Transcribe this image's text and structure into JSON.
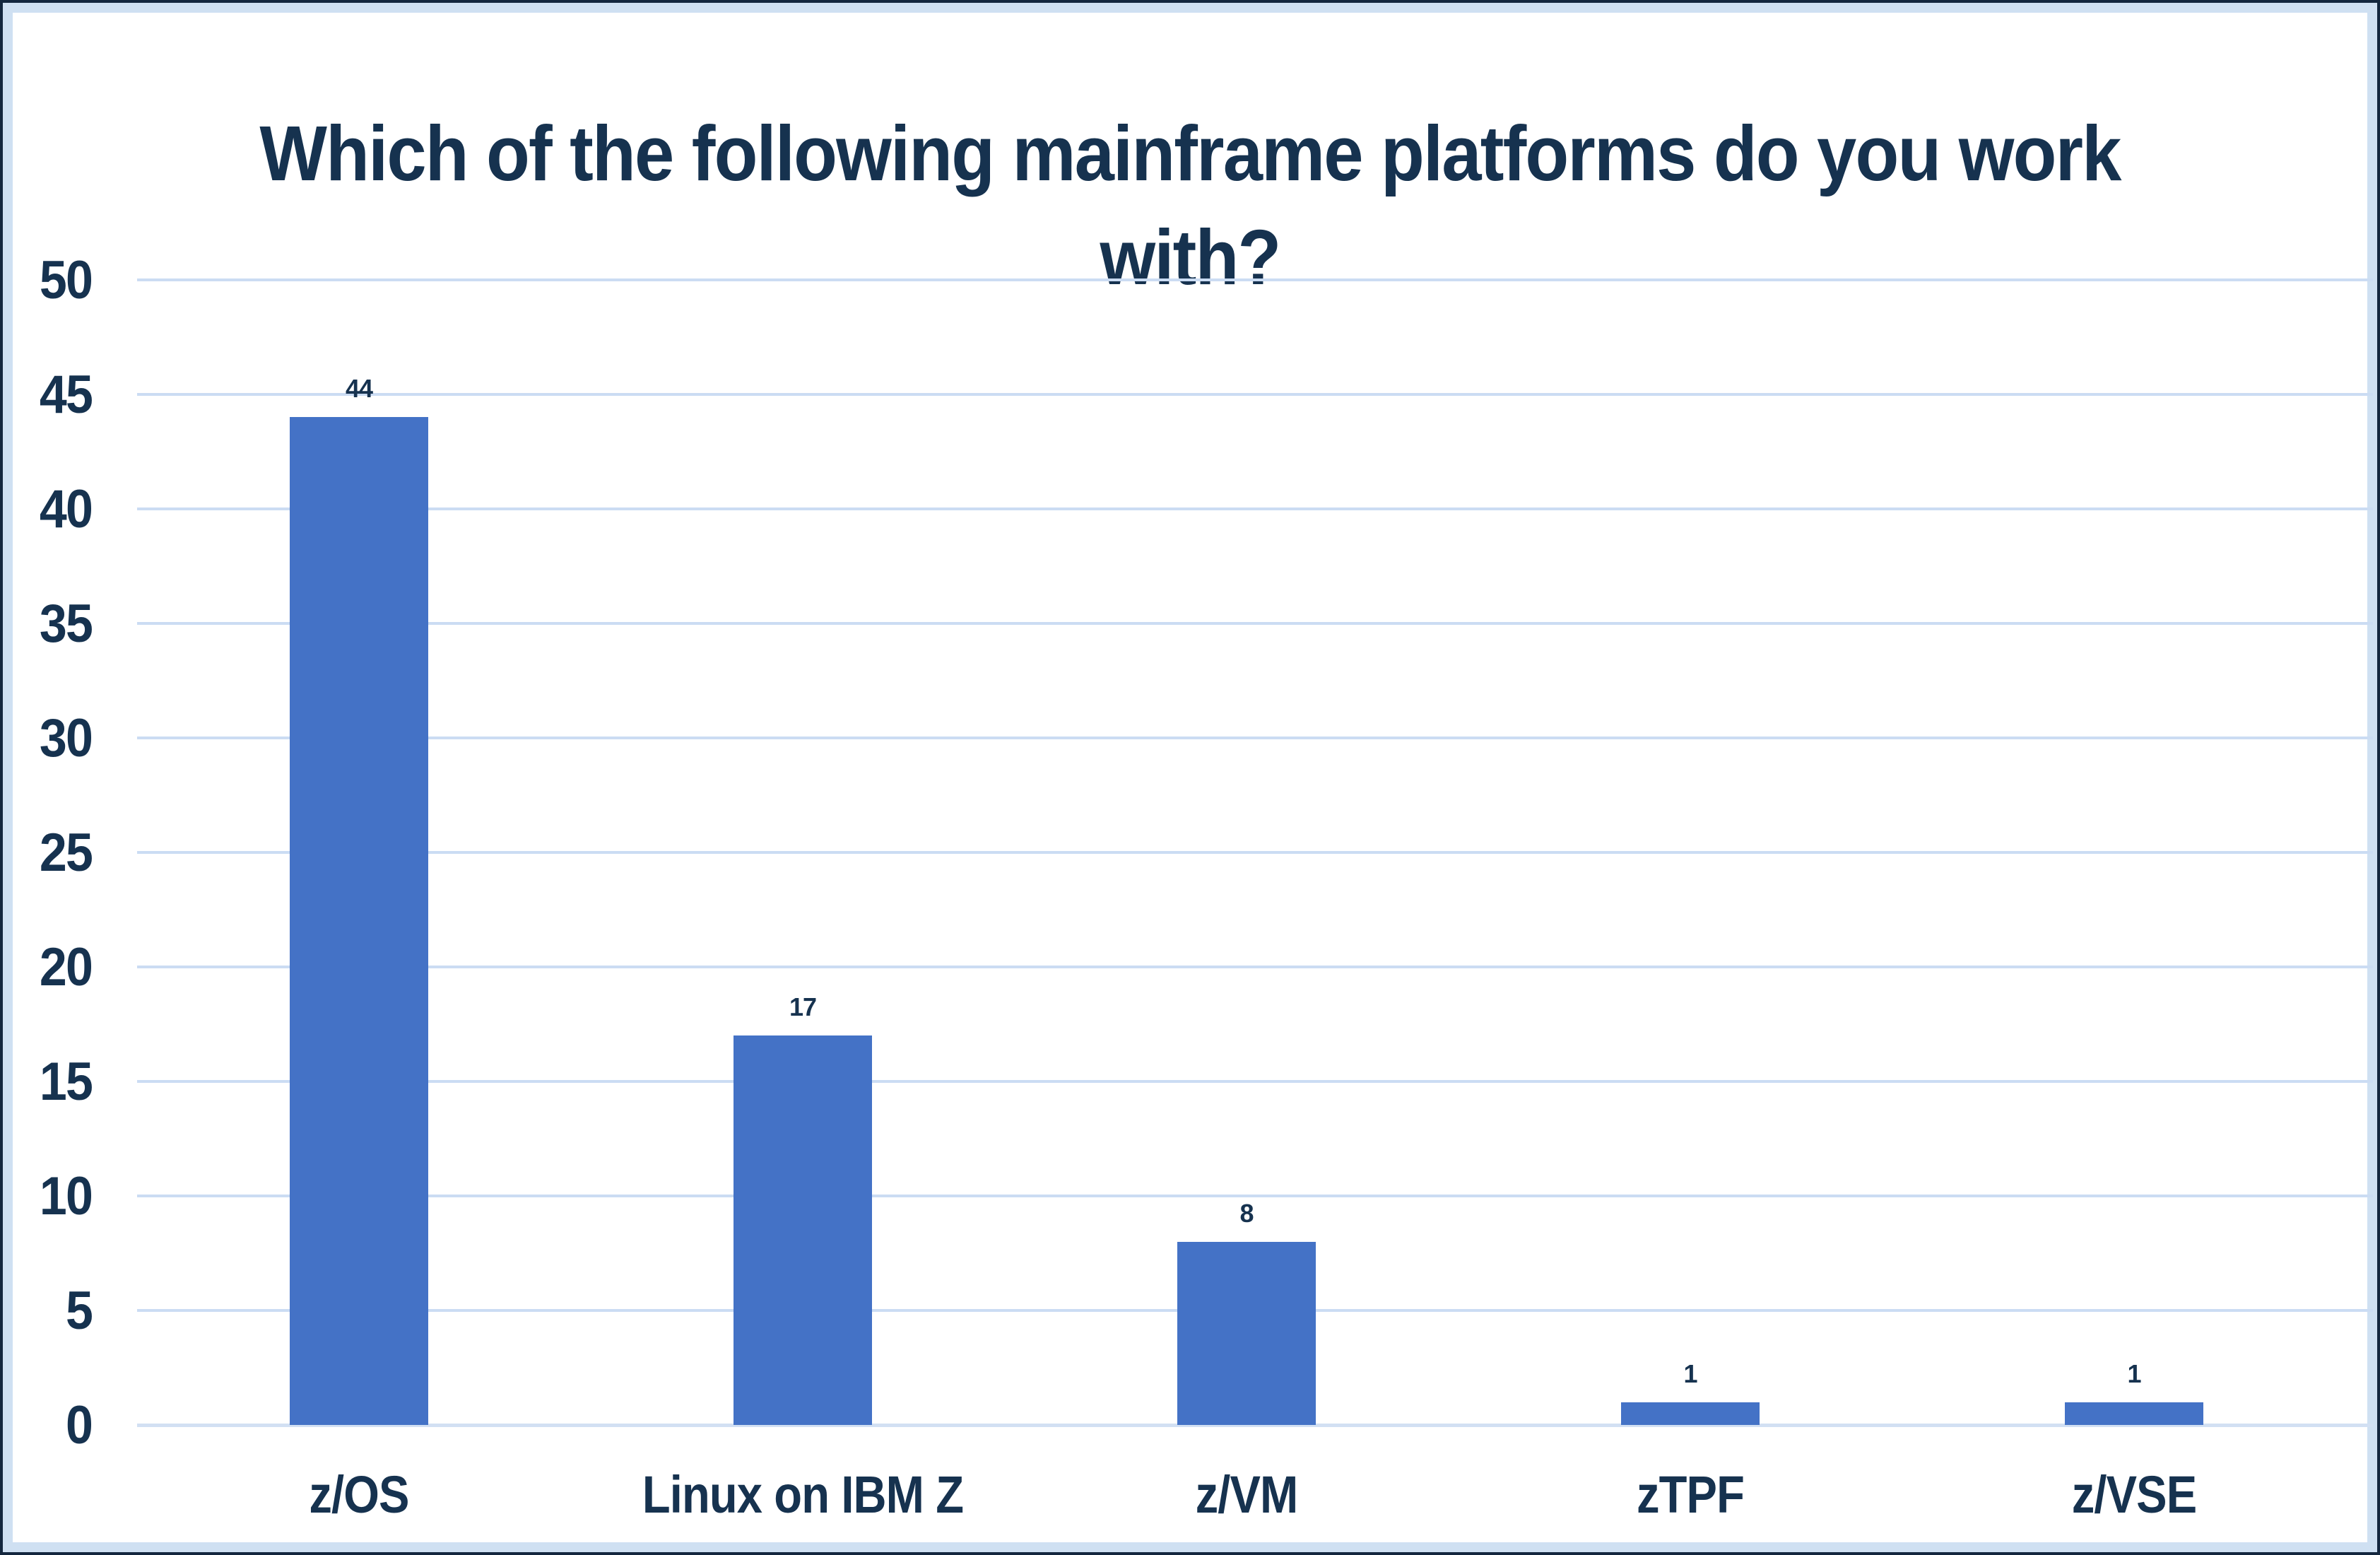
{
  "chart_data": {
    "type": "bar",
    "title": "Which of the following mainframe platforms do you work with?",
    "categories": [
      "z/OS",
      "Linux on IBM Z",
      "z/VM",
      "zTPF",
      "z/VSE"
    ],
    "values": [
      44,
      17,
      8,
      1,
      1
    ],
    "data_labels": [
      44,
      17,
      8,
      1,
      1
    ],
    "xlabel": "",
    "ylabel": "",
    "ylim": [
      0,
      50
    ],
    "ytick_interval": 5,
    "ytick_labels": [
      "0",
      "5",
      "10",
      "15",
      "20",
      "25",
      "30",
      "35",
      "40",
      "45",
      "50"
    ],
    "grid": true,
    "legend_position": "none",
    "colors": {
      "bar_fill": "#4472C6",
      "text": "#16324F",
      "gridline": "#CBDCF3",
      "axis_line": "#D2E0F3",
      "frame_outer": "#14273E",
      "frame_inner": "#CFE0F2",
      "background": "#FFFFFF"
    }
  }
}
